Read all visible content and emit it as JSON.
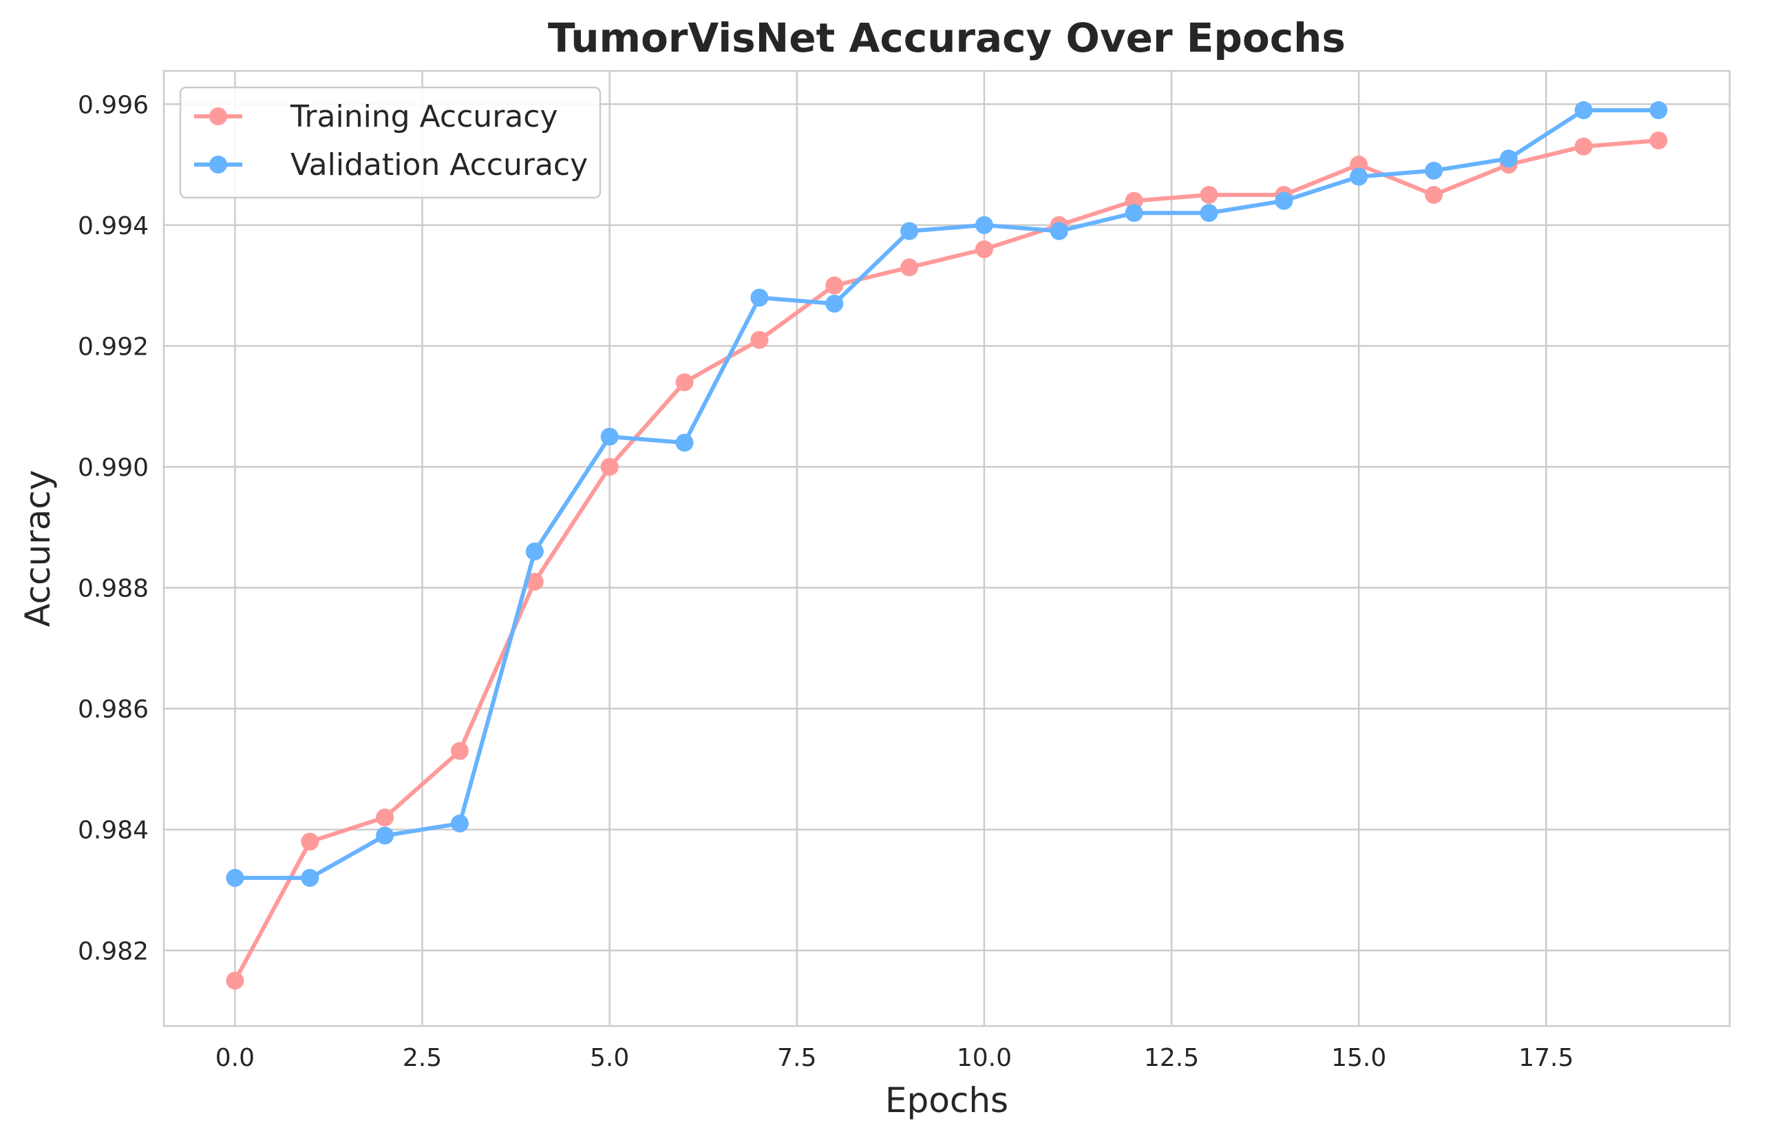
{
  "chart_data": {
    "type": "line",
    "title": "TumorVisNet Accuracy Over Epochs",
    "xlabel": "Epochs",
    "ylabel": "Accuracy",
    "xlim": [
      -0.95,
      19.95
    ],
    "ylim": [
      0.98075,
      0.99655
    ],
    "x_ticks": [
      0.0,
      2.5,
      5.0,
      7.5,
      10.0,
      12.5,
      15.0,
      17.5
    ],
    "x_tick_labels": [
      "0.0",
      "2.5",
      "5.0",
      "7.5",
      "10.0",
      "12.5",
      "15.0",
      "17.5"
    ],
    "y_ticks": [
      0.982,
      0.984,
      0.986,
      0.988,
      0.99,
      0.992,
      0.994,
      0.996
    ],
    "y_tick_labels": [
      "0.982",
      "0.984",
      "0.986",
      "0.988",
      "0.990",
      "0.992",
      "0.994",
      "0.996"
    ],
    "grid": true,
    "legend_position": "top-left",
    "x": [
      0,
      1,
      2,
      3,
      4,
      5,
      6,
      7,
      8,
      9,
      10,
      11,
      12,
      13,
      14,
      15,
      16,
      17,
      18,
      19
    ],
    "series": [
      {
        "name": "Training Accuracy",
        "color": "#ff9a9a",
        "values": [
          0.9815,
          0.9838,
          0.9842,
          0.9853,
          0.9881,
          0.99,
          0.9914,
          0.9921,
          0.993,
          0.9933,
          0.9936,
          0.994,
          0.9944,
          0.9945,
          0.9945,
          0.995,
          0.9945,
          0.995,
          0.9953,
          0.9954
        ]
      },
      {
        "name": "Validation Accuracy",
        "color": "#66b3ff",
        "values": [
          0.9832,
          0.9832,
          0.9839,
          0.9841,
          0.9886,
          0.9905,
          0.9904,
          0.9928,
          0.9927,
          0.9939,
          0.994,
          0.9939,
          0.9942,
          0.9942,
          0.9944,
          0.9948,
          0.9949,
          0.9951,
          0.9959,
          0.9959
        ]
      }
    ],
    "colors": {
      "grid": "#cccccc",
      "frame": "#cccccc",
      "text": "#262626"
    }
  }
}
